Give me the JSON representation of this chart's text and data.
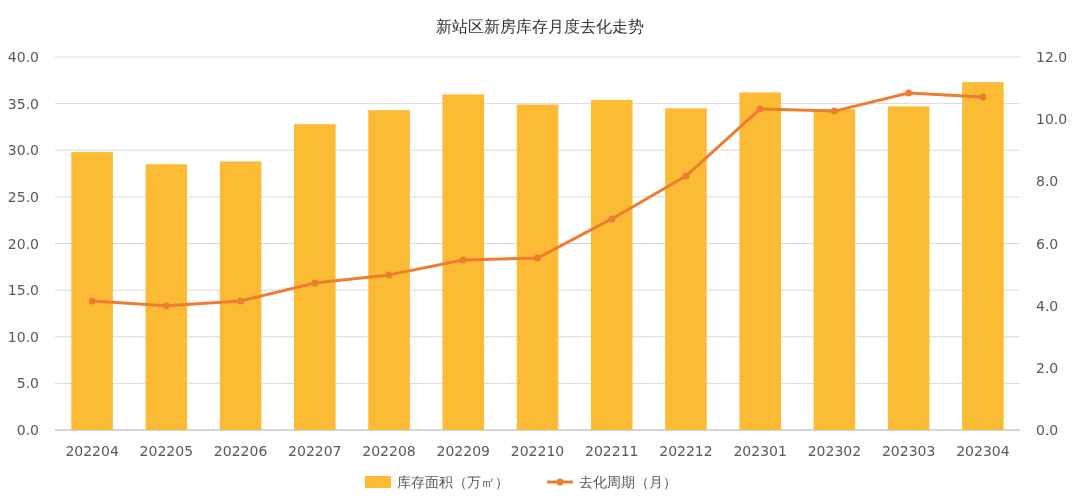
{
  "chart_data": {
    "type": "bar",
    "title": "新站区新房库存月度去化走势",
    "categories": [
      "202204",
      "202205",
      "202206",
      "202207",
      "202208",
      "202209",
      "202210",
      "202211",
      "202212",
      "202301",
      "202302",
      "202303",
      "202304"
    ],
    "series": [
      {
        "name": "库存面积（万㎡）",
        "color": "#fbbb35",
        "values": [
          29.8,
          28.5,
          28.8,
          32.8,
          34.3,
          36.0,
          34.9,
          35.4,
          34.5,
          36.2,
          34.4,
          34.7,
          37.3
        ]
      },
      {
        "name": "去化周期（月）",
        "type": "line",
        "axis": "y2",
        "color": "#ed7d31",
        "marker": "circle",
        "values": [
          4.15,
          4.0,
          4.15,
          4.73,
          4.99,
          5.47,
          5.53,
          6.79,
          8.17,
          10.33,
          10.26,
          10.84,
          10.71
        ]
      }
    ],
    "ylim": [
      0,
      40
    ],
    "yticks": [
      {
        "value": 0,
        "label": "0.0"
      },
      {
        "value": 5,
        "label": "5.0"
      },
      {
        "value": 10,
        "label": "10.0"
      },
      {
        "value": 15,
        "label": "15.0"
      },
      {
        "value": 20,
        "label": "20.0"
      },
      {
        "value": 25,
        "label": "25.0"
      },
      {
        "value": 30,
        "label": "30.0"
      },
      {
        "value": 35,
        "label": "35.0"
      },
      {
        "value": 40,
        "label": "40.0"
      }
    ],
    "y2lim": [
      0,
      12
    ],
    "y2ticks": [
      {
        "value": 0,
        "label": "0.0"
      },
      {
        "value": 2,
        "label": "2.0"
      },
      {
        "value": 4,
        "label": "4.0"
      },
      {
        "value": 6,
        "label": "6.0"
      },
      {
        "value": 8,
        "label": "8.0"
      },
      {
        "value": 10,
        "label": "10.0"
      },
      {
        "value": 12,
        "label": "12.0"
      }
    ],
    "grid": "y",
    "legend": "bottom"
  }
}
